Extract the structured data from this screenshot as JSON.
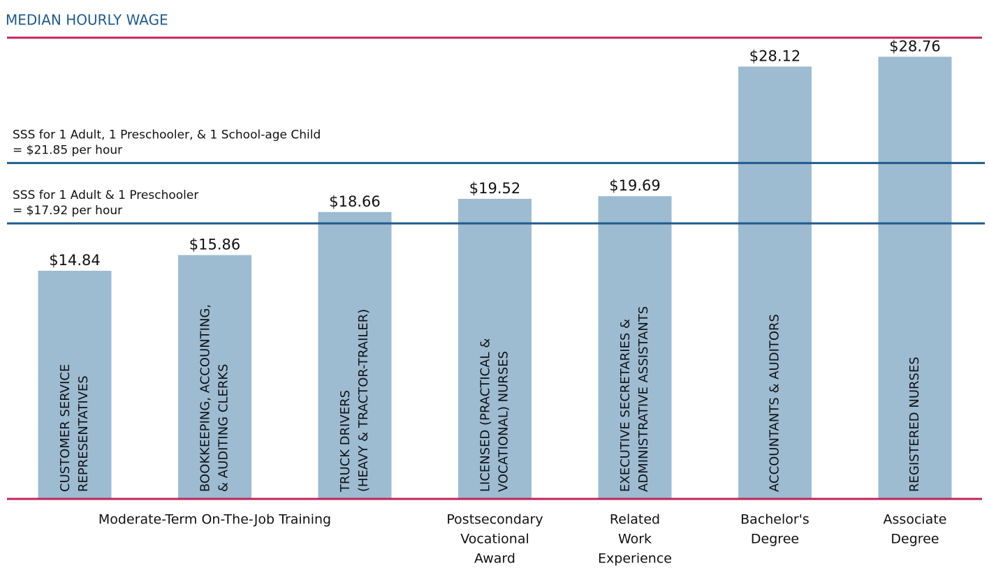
{
  "chart_data": {
    "type": "bar",
    "title": "MEDIAN HOURLY WAGE",
    "color": "#9dbbd1",
    "ylim": [
      0,
      30
    ],
    "reference_lines": [
      {
        "value": 21.85,
        "label": [
          "SSS for 1 Adult, 1 Preschooler, & 1 School-age Child",
          "= $21.85 per hour"
        ],
        "color": "#1f5b8e"
      },
      {
        "value": 17.92,
        "label": [
          "SSS for 1 Adult & 1 Preschooler",
          "= $17.92 per hour"
        ],
        "color": "#1f5b8e"
      }
    ],
    "groups": [
      {
        "label": [
          "Moderate-Term On-The-Job Training"
        ],
        "categories": [
          [
            "CUSTOMER SERVICE",
            "REPRESENTATIVES"
          ],
          [
            "BOOKKEEPING, ACCOUNTING,",
            "& AUDITING CLERKS"
          ],
          [
            "TRUCK DRIVERS",
            "(HEAVY & TRACTOR-TRAILER)"
          ]
        ],
        "values": [
          14.84,
          15.86,
          18.66
        ],
        "value_labels": [
          "$14.84",
          "$15.86",
          "$18.66"
        ]
      },
      {
        "label": [
          "Postsecondary",
          "Vocational",
          "Award"
        ],
        "categories": [
          [
            "LICENSED (PRACTICAL &",
            "VOCATIONAL) NURSES"
          ]
        ],
        "values": [
          19.52
        ],
        "value_labels": [
          "$19.52"
        ]
      },
      {
        "label": [
          "Related",
          "Work",
          "Experience"
        ],
        "categories": [
          [
            "EXECUTIVE SECRETARIES &",
            "ADMINISTRATIVE ASSISTANTS"
          ]
        ],
        "values": [
          19.69
        ],
        "value_labels": [
          "$19.69"
        ]
      },
      {
        "label": [
          "Bachelor's",
          "Degree"
        ],
        "categories": [
          [
            "ACCOUNTANTS & AUDITORS"
          ]
        ],
        "values": [
          28.12
        ],
        "value_labels": [
          "$28.12"
        ]
      },
      {
        "label": [
          "Associate",
          "Degree"
        ],
        "categories": [
          [
            "REGISTERED NURSES"
          ]
        ],
        "values": [
          28.76
        ],
        "value_labels": [
          "$28.76"
        ]
      }
    ]
  }
}
